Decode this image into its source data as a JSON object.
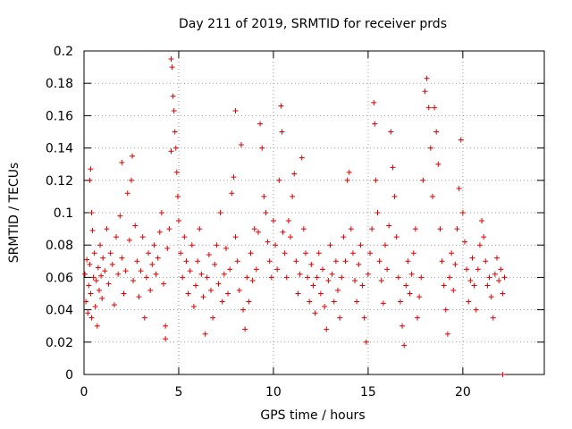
{
  "chart_data": {
    "type": "scatter",
    "title": "Day 211 of 2019, SRMTID for receiver prds",
    "xlabel": "GPS time / hours",
    "ylabel": "SRMTID / TECUs",
    "xlim": [
      0,
      24.3
    ],
    "ylim": [
      0,
      0.2
    ],
    "xticks": [
      0,
      5,
      10,
      15,
      20
    ],
    "xtick_labels": [
      "0",
      "5",
      "10",
      "15",
      "20"
    ],
    "yticks": [
      0,
      0.02,
      0.04,
      0.06,
      0.08,
      0.1,
      0.12,
      0.14,
      0.16,
      0.18,
      0.2
    ],
    "ytick_labels": [
      "0",
      "0.02",
      "0.04",
      "0.06",
      "0.08",
      "0.1",
      "0.12",
      "0.14",
      "0.16",
      "0.18",
      "0.2"
    ],
    "grid": true,
    "marker": "plus",
    "color": "#e00000",
    "series": [
      {
        "name": "SRMTID",
        "points": [
          [
            0.05,
            0.062
          ],
          [
            0.1,
            0.045
          ],
          [
            0.15,
            0.071
          ],
          [
            0.2,
            0.038
          ],
          [
            0.25,
            0.055
          ],
          [
            0.3,
            0.12
          ],
          [
            0.3,
            0.068
          ],
          [
            0.35,
            0.127
          ],
          [
            0.35,
            0.05
          ],
          [
            0.4,
            0.1
          ],
          [
            0.4,
            0.035
          ],
          [
            0.45,
            0.089
          ],
          [
            0.5,
            0.06
          ],
          [
            0.55,
            0.075
          ],
          [
            0.6,
            0.042
          ],
          [
            0.65,
            0.058
          ],
          [
            0.7,
            0.03
          ],
          [
            0.75,
            0.066
          ],
          [
            0.8,
            0.052
          ],
          [
            0.85,
            0.08
          ],
          [
            0.9,
            0.061
          ],
          [
            0.95,
            0.047
          ],
          [
            1.0,
            0.072
          ],
          [
            1.1,
            0.064
          ],
          [
            1.2,
            0.09
          ],
          [
            1.3,
            0.056
          ],
          [
            1.4,
            0.075
          ],
          [
            1.5,
            0.068
          ],
          [
            1.6,
            0.043
          ],
          [
            1.7,
            0.085
          ],
          [
            1.8,
            0.062
          ],
          [
            1.9,
            0.098
          ],
          [
            2.0,
            0.072
          ],
          [
            2.0,
            0.131
          ],
          [
            2.1,
            0.05
          ],
          [
            2.2,
            0.064
          ],
          [
            2.3,
            0.112
          ],
          [
            2.4,
            0.083
          ],
          [
            2.5,
            0.12
          ],
          [
            2.55,
            0.135
          ],
          [
            2.6,
            0.058
          ],
          [
            2.7,
            0.092
          ],
          [
            2.8,
            0.07
          ],
          [
            2.9,
            0.048
          ],
          [
            3.0,
            0.064
          ],
          [
            3.1,
            0.085
          ],
          [
            3.2,
            0.035
          ],
          [
            3.3,
            0.06
          ],
          [
            3.4,
            0.075
          ],
          [
            3.5,
            0.052
          ],
          [
            3.6,
            0.068
          ],
          [
            3.7,
            0.08
          ],
          [
            3.8,
            0.062
          ],
          [
            3.9,
            0.072
          ],
          [
            4.0,
            0.088
          ],
          [
            4.1,
            0.1
          ],
          [
            4.2,
            0.056
          ],
          [
            4.3,
            0.03
          ],
          [
            4.3,
            0.022
          ],
          [
            4.4,
            0.078
          ],
          [
            4.5,
            0.09
          ],
          [
            4.6,
            0.138
          ],
          [
            4.6,
            0.195
          ],
          [
            4.65,
            0.19
          ],
          [
            4.7,
            0.172
          ],
          [
            4.75,
            0.163
          ],
          [
            4.8,
            0.15
          ],
          [
            4.85,
            0.14
          ],
          [
            4.9,
            0.125
          ],
          [
            4.95,
            0.11
          ],
          [
            5.0,
            0.095
          ],
          [
            5.1,
            0.075
          ],
          [
            5.2,
            0.06
          ],
          [
            5.3,
            0.085
          ],
          [
            5.4,
            0.07
          ],
          [
            5.5,
            0.05
          ],
          [
            5.6,
            0.064
          ],
          [
            5.7,
            0.08
          ],
          [
            5.8,
            0.042
          ],
          [
            5.9,
            0.055
          ],
          [
            6.0,
            0.07
          ],
          [
            6.1,
            0.09
          ],
          [
            6.2,
            0.062
          ],
          [
            6.3,
            0.048
          ],
          [
            6.4,
            0.025
          ],
          [
            6.5,
            0.06
          ],
          [
            6.6,
            0.074
          ],
          [
            6.7,
            0.052
          ],
          [
            6.8,
            0.035
          ],
          [
            6.9,
            0.068
          ],
          [
            7.0,
            0.08
          ],
          [
            7.1,
            0.056
          ],
          [
            7.2,
            0.1
          ],
          [
            7.3,
            0.045
          ],
          [
            7.4,
            0.062
          ],
          [
            7.5,
            0.078
          ],
          [
            7.6,
            0.05
          ],
          [
            7.7,
            0.065
          ],
          [
            7.8,
            0.112
          ],
          [
            7.9,
            0.122
          ],
          [
            8.0,
            0.085
          ],
          [
            8.0,
            0.163
          ],
          [
            8.1,
            0.07
          ],
          [
            8.2,
            0.052
          ],
          [
            8.3,
            0.142
          ],
          [
            8.4,
            0.04
          ],
          [
            8.5,
            0.028
          ],
          [
            8.6,
            0.06
          ],
          [
            8.7,
            0.045
          ],
          [
            8.8,
            0.075
          ],
          [
            8.9,
            0.058
          ],
          [
            9.0,
            0.09
          ],
          [
            9.1,
            0.065
          ],
          [
            9.2,
            0.088
          ],
          [
            9.3,
            0.155
          ],
          [
            9.4,
            0.14
          ],
          [
            9.5,
            0.11
          ],
          [
            9.6,
            0.1
          ],
          [
            9.7,
            0.082
          ],
          [
            9.8,
            0.07
          ],
          [
            9.9,
            0.06
          ],
          [
            10.0,
            0.095
          ],
          [
            10.1,
            0.08
          ],
          [
            10.2,
            0.065
          ],
          [
            10.3,
            0.12
          ],
          [
            10.4,
            0.166
          ],
          [
            10.45,
            0.15
          ],
          [
            10.5,
            0.088
          ],
          [
            10.6,
            0.075
          ],
          [
            10.7,
            0.06
          ],
          [
            10.8,
            0.095
          ],
          [
            10.9,
            0.085
          ],
          [
            11.0,
            0.11
          ],
          [
            11.1,
            0.124
          ],
          [
            11.2,
            0.07
          ],
          [
            11.3,
            0.05
          ],
          [
            11.4,
            0.062
          ],
          [
            11.5,
            0.134
          ],
          [
            11.6,
            0.09
          ],
          [
            11.7,
            0.075
          ],
          [
            11.8,
            0.06
          ],
          [
            11.9,
            0.045
          ],
          [
            12.0,
            0.068
          ],
          [
            12.1,
            0.055
          ],
          [
            12.2,
            0.038
          ],
          [
            12.3,
            0.06
          ],
          [
            12.4,
            0.075
          ],
          [
            12.5,
            0.05
          ],
          [
            12.6,
            0.065
          ],
          [
            12.7,
            0.042
          ],
          [
            12.8,
            0.028
          ],
          [
            12.9,
            0.058
          ],
          [
            13.0,
            0.08
          ],
          [
            13.1,
            0.062
          ],
          [
            13.2,
            0.045
          ],
          [
            13.3,
            0.07
          ],
          [
            13.4,
            0.052
          ],
          [
            13.5,
            0.035
          ],
          [
            13.6,
            0.06
          ],
          [
            13.7,
            0.085
          ],
          [
            13.8,
            0.07
          ],
          [
            13.9,
            0.12
          ],
          [
            14.0,
            0.125
          ],
          [
            14.1,
            0.09
          ],
          [
            14.2,
            0.075
          ],
          [
            14.3,
            0.058
          ],
          [
            14.4,
            0.045
          ],
          [
            14.5,
            0.068
          ],
          [
            14.6,
            0.08
          ],
          [
            14.7,
            0.055
          ],
          [
            14.8,
            0.035
          ],
          [
            14.9,
            0.02
          ],
          [
            15.0,
            0.062
          ],
          [
            15.1,
            0.075
          ],
          [
            15.2,
            0.09
          ],
          [
            15.3,
            0.168
          ],
          [
            15.35,
            0.155
          ],
          [
            15.4,
            0.12
          ],
          [
            15.5,
            0.1
          ],
          [
            15.6,
            0.07
          ],
          [
            15.7,
            0.058
          ],
          [
            15.8,
            0.044
          ],
          [
            15.9,
            0.08
          ],
          [
            16.0,
            0.065
          ],
          [
            16.1,
            0.092
          ],
          [
            16.2,
            0.15
          ],
          [
            16.3,
            0.128
          ],
          [
            16.4,
            0.11
          ],
          [
            16.5,
            0.085
          ],
          [
            16.6,
            0.06
          ],
          [
            16.7,
            0.045
          ],
          [
            16.8,
            0.03
          ],
          [
            16.9,
            0.018
          ],
          [
            17.0,
            0.055
          ],
          [
            17.1,
            0.07
          ],
          [
            17.2,
            0.05
          ],
          [
            17.3,
            0.062
          ],
          [
            17.4,
            0.075
          ],
          [
            17.5,
            0.09
          ],
          [
            17.6,
            0.035
          ],
          [
            17.7,
            0.048
          ],
          [
            17.8,
            0.06
          ],
          [
            17.9,
            0.12
          ],
          [
            18.0,
            0.175
          ],
          [
            18.1,
            0.183
          ],
          [
            18.2,
            0.165
          ],
          [
            18.3,
            0.14
          ],
          [
            18.4,
            0.11
          ],
          [
            18.5,
            0.165
          ],
          [
            18.6,
            0.15
          ],
          [
            18.7,
            0.13
          ],
          [
            18.8,
            0.09
          ],
          [
            18.9,
            0.07
          ],
          [
            19.0,
            0.055
          ],
          [
            19.1,
            0.04
          ],
          [
            19.2,
            0.025
          ],
          [
            19.3,
            0.06
          ],
          [
            19.4,
            0.075
          ],
          [
            19.5,
            0.052
          ],
          [
            19.6,
            0.068
          ],
          [
            19.7,
            0.09
          ],
          [
            19.8,
            0.115
          ],
          [
            19.9,
            0.145
          ],
          [
            20.0,
            0.1
          ],
          [
            20.1,
            0.082
          ],
          [
            20.2,
            0.065
          ],
          [
            20.3,
            0.045
          ],
          [
            20.4,
            0.058
          ],
          [
            20.5,
            0.072
          ],
          [
            20.6,
            0.055
          ],
          [
            20.7,
            0.04
          ],
          [
            20.8,
            0.065
          ],
          [
            20.9,
            0.08
          ],
          [
            21.0,
            0.095
          ],
          [
            21.1,
            0.085
          ],
          [
            21.2,
            0.07
          ],
          [
            21.3,
            0.055
          ],
          [
            21.4,
            0.06
          ],
          [
            21.5,
            0.048
          ],
          [
            21.6,
            0.035
          ],
          [
            21.7,
            0.062
          ],
          [
            21.8,
            0.072
          ],
          [
            21.9,
            0.058
          ],
          [
            22.0,
            0.065
          ],
          [
            22.1,
            0.05
          ],
          [
            22.2,
            0.06
          ],
          [
            22.1,
            0.0
          ]
        ]
      }
    ]
  }
}
